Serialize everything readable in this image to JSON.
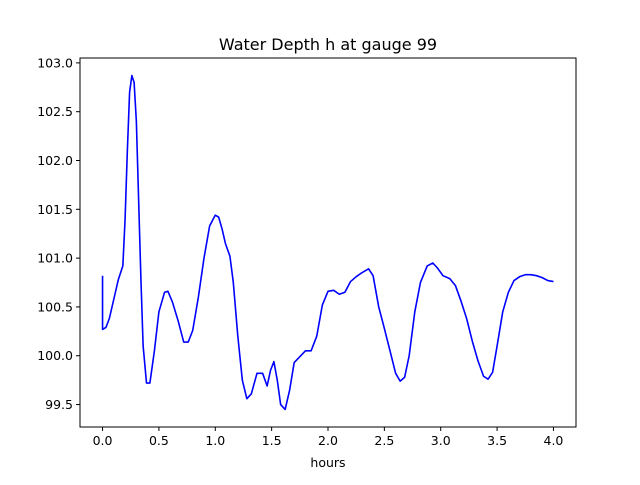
{
  "chart_data": {
    "type": "line",
    "title": "Water Depth h at gauge 99",
    "xlabel": "hours",
    "ylabel": "",
    "xlim": [
      -0.2,
      4.2
    ],
    "ylim": [
      99.27,
      103.05
    ],
    "xticks": [
      0.0,
      0.5,
      1.0,
      1.5,
      2.0,
      2.5,
      3.0,
      3.5,
      4.0
    ],
    "xtick_labels": [
      "0.0",
      "0.5",
      "1.0",
      "1.5",
      "2.0",
      "2.5",
      "3.0",
      "3.5",
      "4.0"
    ],
    "yticks": [
      99.5,
      100.0,
      100.5,
      101.0,
      101.5,
      102.0,
      102.5,
      103.0
    ],
    "ytick_labels": [
      "99.5",
      "100.0",
      "100.5",
      "101.0",
      "101.5",
      "102.0",
      "102.5",
      "103.0"
    ],
    "grid": false,
    "series": [
      {
        "name": "",
        "color": "#0000ff",
        "points": [
          [
            0.0,
            100.82
          ],
          [
            0.0,
            100.27
          ],
          [
            0.03,
            100.29
          ],
          [
            0.06,
            100.38
          ],
          [
            0.1,
            100.58
          ],
          [
            0.14,
            100.78
          ],
          [
            0.18,
            100.92
          ],
          [
            0.2,
            101.4
          ],
          [
            0.22,
            102.1
          ],
          [
            0.24,
            102.7
          ],
          [
            0.26,
            102.87
          ],
          [
            0.28,
            102.8
          ],
          [
            0.3,
            102.4
          ],
          [
            0.32,
            101.6
          ],
          [
            0.34,
            100.8
          ],
          [
            0.36,
            100.1
          ],
          [
            0.39,
            99.72
          ],
          [
            0.42,
            99.72
          ],
          [
            0.46,
            100.05
          ],
          [
            0.5,
            100.45
          ],
          [
            0.55,
            100.65
          ],
          [
            0.58,
            100.66
          ],
          [
            0.62,
            100.55
          ],
          [
            0.67,
            100.36
          ],
          [
            0.72,
            100.14
          ],
          [
            0.76,
            100.14
          ],
          [
            0.8,
            100.26
          ],
          [
            0.85,
            100.6
          ],
          [
            0.9,
            101.0
          ],
          [
            0.95,
            101.33
          ],
          [
            1.0,
            101.44
          ],
          [
            1.03,
            101.42
          ],
          [
            1.06,
            101.3
          ],
          [
            1.09,
            101.15
          ],
          [
            1.13,
            101.02
          ],
          [
            1.16,
            100.75
          ],
          [
            1.2,
            100.2
          ],
          [
            1.24,
            99.75
          ],
          [
            1.28,
            99.56
          ],
          [
            1.32,
            99.61
          ],
          [
            1.37,
            99.82
          ],
          [
            1.42,
            99.82
          ],
          [
            1.46,
            99.69
          ],
          [
            1.49,
            99.85
          ],
          [
            1.52,
            99.94
          ],
          [
            1.55,
            99.75
          ],
          [
            1.58,
            99.5
          ],
          [
            1.62,
            99.45
          ],
          [
            1.66,
            99.65
          ],
          [
            1.7,
            99.93
          ],
          [
            1.75,
            99.99
          ],
          [
            1.8,
            100.05
          ],
          [
            1.85,
            100.05
          ],
          [
            1.9,
            100.2
          ],
          [
            1.95,
            100.52
          ],
          [
            2.0,
            100.66
          ],
          [
            2.05,
            100.67
          ],
          [
            2.1,
            100.63
          ],
          [
            2.15,
            100.65
          ],
          [
            2.2,
            100.76
          ],
          [
            2.25,
            100.81
          ],
          [
            2.3,
            100.85
          ],
          [
            2.36,
            100.89
          ],
          [
            2.4,
            100.82
          ],
          [
            2.45,
            100.5
          ],
          [
            2.5,
            100.28
          ],
          [
            2.55,
            100.05
          ],
          [
            2.6,
            99.82
          ],
          [
            2.64,
            99.74
          ],
          [
            2.68,
            99.78
          ],
          [
            2.72,
            100.0
          ],
          [
            2.77,
            100.45
          ],
          [
            2.82,
            100.75
          ],
          [
            2.88,
            100.92
          ],
          [
            2.93,
            100.95
          ],
          [
            2.97,
            100.9
          ],
          [
            3.02,
            100.82
          ],
          [
            3.08,
            100.79
          ],
          [
            3.13,
            100.72
          ],
          [
            3.18,
            100.56
          ],
          [
            3.23,
            100.38
          ],
          [
            3.28,
            100.15
          ],
          [
            3.33,
            99.95
          ],
          [
            3.38,
            99.79
          ],
          [
            3.42,
            99.76
          ],
          [
            3.46,
            99.83
          ],
          [
            3.5,
            100.1
          ],
          [
            3.55,
            100.45
          ],
          [
            3.6,
            100.65
          ],
          [
            3.65,
            100.77
          ],
          [
            3.7,
            100.81
          ],
          [
            3.75,
            100.83
          ],
          [
            3.8,
            100.83
          ],
          [
            3.85,
            100.82
          ],
          [
            3.9,
            100.8
          ],
          [
            3.95,
            100.77
          ],
          [
            4.0,
            100.76
          ]
        ]
      }
    ]
  }
}
